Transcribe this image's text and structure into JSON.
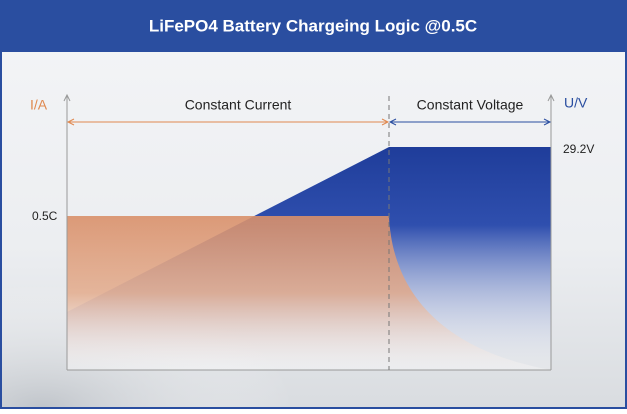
{
  "header": {
    "title": "LiFePO4 Battery Chargeing Logic @0.5C"
  },
  "diagram": {
    "left_axis_label": "I/A",
    "right_axis_label": "U/V",
    "phases": [
      "Constant Current",
      "Constant Voltage"
    ],
    "current_label": "0.5C",
    "voltage_label": "29.2V"
  }
}
